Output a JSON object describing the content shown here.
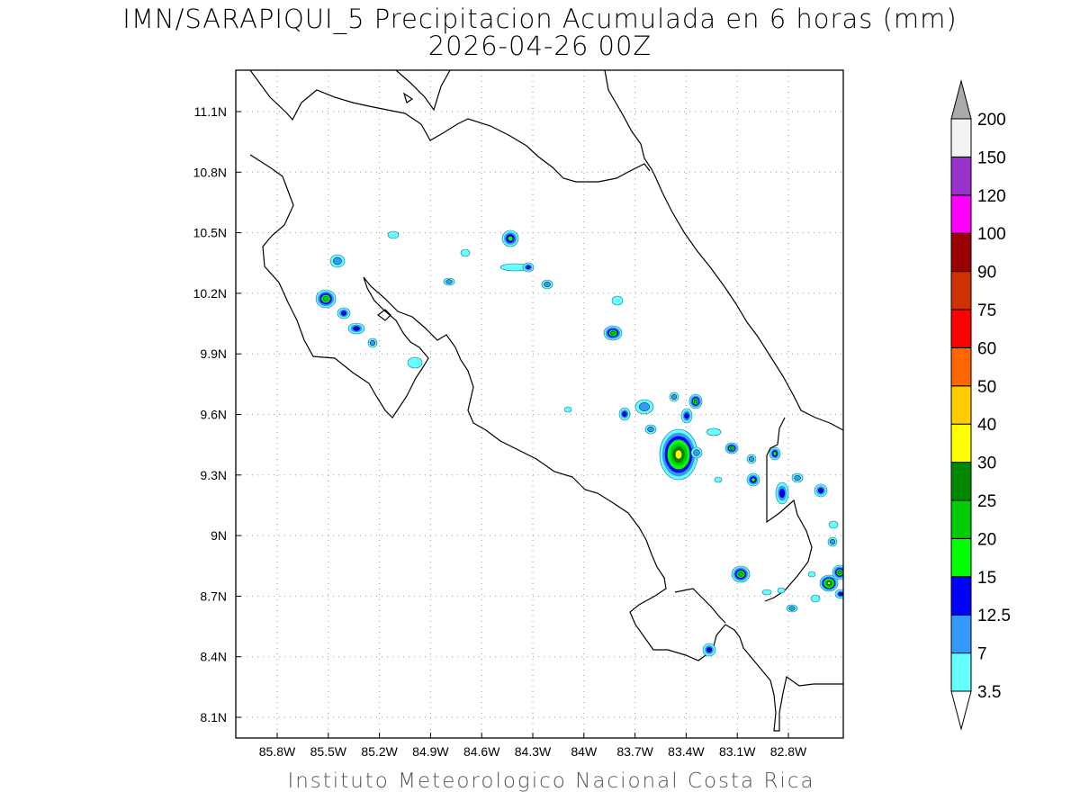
{
  "header": {
    "title": "IMN/SARAPIQUI_5 Precipitacion Acumulada en 6 horas (mm)",
    "subtitle": "2026-04-26 00Z"
  },
  "footer": {
    "credit": "Instituto Meteorologico Nacional Costa Rica"
  },
  "map": {
    "lat_labels": [
      "11.1N",
      "10.8N",
      "10.5N",
      "10.2N",
      "9.9N",
      "9.6N",
      "9.3N",
      "9N",
      "8.7N",
      "8.4N",
      "8.1N"
    ],
    "lon_labels": [
      "85.8W",
      "85.5W",
      "85.2W",
      "84.9W",
      "84.6W",
      "84.3W",
      "84W",
      "83.7W",
      "83.4W",
      "83.1W",
      "82.8W"
    ],
    "grid": "dotted"
  },
  "colorbar": {
    "levels": [
      "3.5",
      "7",
      "12.5",
      "15",
      "20",
      "25",
      "30",
      "40",
      "50",
      "60",
      "75",
      "90",
      "100",
      "120",
      "150",
      "200"
    ],
    "colors": [
      "#66ffff",
      "#3399ff",
      "#0000ff",
      "#00ff00",
      "#00cc00",
      "#008800",
      "#ffff00",
      "#ffcc00",
      "#ff6600",
      "#ff0000",
      "#cc3300",
      "#990000",
      "#ff00ff",
      "#9933cc",
      "#f3f3f3",
      "#aaaaaa"
    ]
  }
}
